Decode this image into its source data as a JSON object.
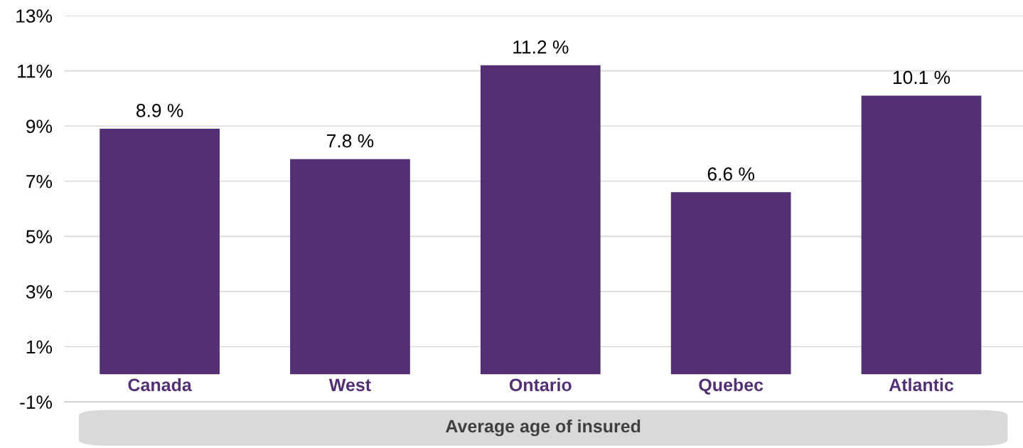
{
  "chart_data": {
    "type": "bar",
    "xlabel": "Average age of insured",
    "categories": [
      "Canada",
      "West",
      "Ontario",
      "Quebec",
      "Atlantic"
    ],
    "values": [
      8.9,
      7.8,
      11.2,
      6.6,
      10.1
    ],
    "value_labels": [
      "8.9 %",
      "7.8 %",
      "11.2 %",
      "6.6 %",
      "10.1 %"
    ],
    "color": "#532f73",
    "ylim": [
      -1,
      13
    ],
    "yticks": [
      {
        "value": -1,
        "label": "-1%"
      },
      {
        "value": 1,
        "label": "1%"
      },
      {
        "value": 3,
        "label": "3%"
      },
      {
        "value": 5,
        "label": "5%"
      },
      {
        "value": 7,
        "label": "7%"
      },
      {
        "value": 9,
        "label": "9%"
      },
      {
        "value": 11,
        "label": "11%"
      },
      {
        "value": 13,
        "label": "13%"
      }
    ],
    "grid": "y",
    "legend": false
  }
}
